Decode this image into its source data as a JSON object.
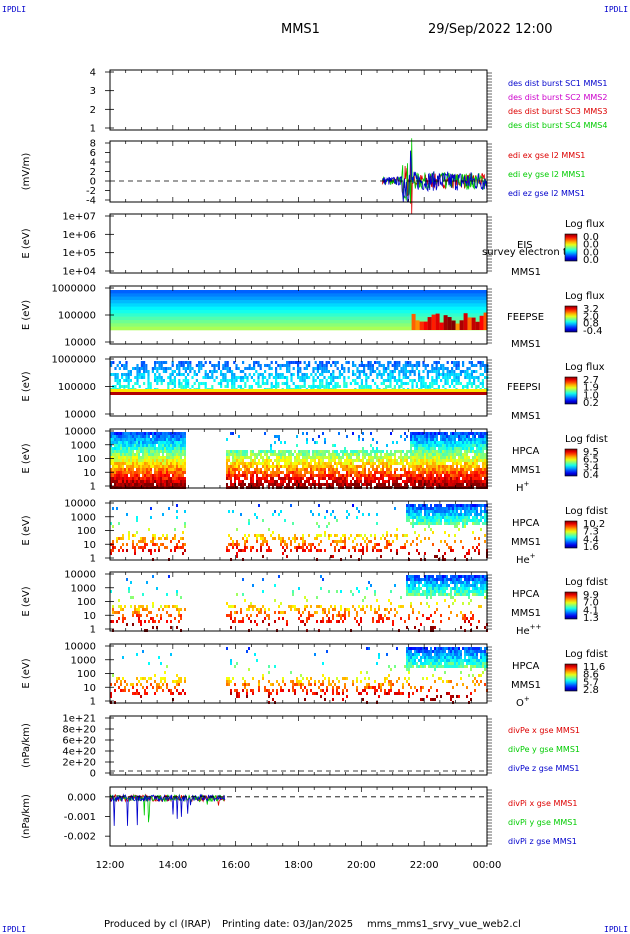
{
  "corner_label": "IPDLI",
  "header": {
    "mission": "MMS1",
    "datetime": "29/Sep/2022 12:00"
  },
  "footer": {
    "produced_by": "Produced by cl (IRAP)",
    "printing_date": "Printing date: 03/Jan/2025",
    "filename": "mms_mms1_srvy_vue_web2.cl"
  },
  "x_ticks": [
    "12:00",
    "14:00",
    "16:00",
    "18:00",
    "20:00",
    "22:00",
    "00:00"
  ],
  "colors": {
    "blue": "#0000cc",
    "magenta": "#cc00cc",
    "red": "#dd0000",
    "green": "#00cc00"
  },
  "chart_data": [
    {
      "id": "panel-dist",
      "type": "line",
      "y_ticks": [
        "1",
        "2",
        "3",
        "4"
      ],
      "ylim": [
        1,
        4
      ],
      "series": [
        {
          "name": "des dist burst SC1 MMS1",
          "color": "#0000cc",
          "values": []
        },
        {
          "name": "des dist burst SC2 MMS2",
          "color": "#cc00cc",
          "values": []
        },
        {
          "name": "des dist burst SC3 MMS3",
          "color": "#dd0000",
          "values": []
        },
        {
          "name": "des dist burst SC4 MMS4",
          "color": "#00cc00",
          "values": []
        }
      ]
    },
    {
      "id": "panel-efield",
      "type": "line",
      "ylabel": "(mV/m)",
      "y_ticks": [
        "-4",
        "-2",
        "0",
        "2",
        "4",
        "6",
        "8"
      ],
      "ylim": [
        -4,
        8
      ],
      "data_start_time": "20:40",
      "series": [
        {
          "name": "edi ex gse l2 MMS1",
          "color": "#dd0000"
        },
        {
          "name": "edi ey gse l2 MMS1",
          "color": "#00cc00"
        },
        {
          "name": "edi ez gse l2 MMS1",
          "color": "#0000cc"
        }
      ]
    },
    {
      "id": "panel-eis",
      "type": "heatmap",
      "ylabel": "E (eV)",
      "y_ticks": [
        "1e+04",
        "1e+05",
        "1e+06",
        "1e+07"
      ],
      "instrument": "EIS",
      "species": "survey electron to",
      "spacecraft": "MMS1",
      "colorbar_title": "Log flux",
      "colorbar_ticks": [
        "0.0",
        "0.0",
        "0.0",
        "0.0"
      ]
    },
    {
      "id": "panel-feepse",
      "type": "heatmap",
      "ylabel": "E (eV)",
      "y_ticks": [
        "10000",
        "100000",
        "1000000"
      ],
      "instrument": "FEEPSE",
      "spacecraft": "MMS1",
      "colorbar_title": "Log flux",
      "colorbar_ticks": [
        "3.2",
        "2.0",
        "0.8",
        "-0.4"
      ]
    },
    {
      "id": "panel-feepsi",
      "type": "heatmap",
      "ylabel": "E (eV)",
      "y_ticks": [
        "10000",
        "100000",
        "1000000"
      ],
      "instrument": "FEEPSI",
      "spacecraft": "MMS1",
      "colorbar_title": "Log flux",
      "colorbar_ticks": [
        "2.7",
        "1.9",
        "1.0",
        "0.2"
      ]
    },
    {
      "id": "panel-hpca-h",
      "type": "heatmap",
      "ylabel": "E (eV)",
      "y_ticks": [
        "1",
        "10",
        "100",
        "1000",
        "10000"
      ],
      "instrument": "HPCA",
      "spacecraft": "MMS1",
      "species_base": "H",
      "species_sup": "+",
      "colorbar_title": "Log fdist",
      "colorbar_ticks": [
        "9.5",
        "6.5",
        "3.4",
        "0.4"
      ],
      "data_gap": [
        "14:25",
        "15:40"
      ]
    },
    {
      "id": "panel-hpca-he",
      "type": "heatmap",
      "ylabel": "E (eV)",
      "y_ticks": [
        "1",
        "10",
        "100",
        "1000",
        "10000"
      ],
      "instrument": "HPCA",
      "spacecraft": "MMS1",
      "species_base": "He",
      "species_sup": "+",
      "colorbar_title": "Log fdist",
      "colorbar_ticks": [
        "10.2",
        "7.3",
        "4.4",
        "1.6"
      ],
      "data_gap": [
        "14:25",
        "15:40"
      ]
    },
    {
      "id": "panel-hpca-he2",
      "type": "heatmap",
      "ylabel": "E (eV)",
      "y_ticks": [
        "1",
        "10",
        "100",
        "1000",
        "10000"
      ],
      "instrument": "HPCA",
      "spacecraft": "MMS1",
      "species_base": "He",
      "species_sup": "++",
      "colorbar_title": "Log fdist",
      "colorbar_ticks": [
        "9.9",
        "7.0",
        "4.1",
        "1.3"
      ],
      "data_gap": [
        "14:25",
        "15:40"
      ]
    },
    {
      "id": "panel-hpca-o",
      "type": "heatmap",
      "ylabel": "E (eV)",
      "y_ticks": [
        "1",
        "10",
        "100",
        "1000",
        "10000"
      ],
      "instrument": "HPCA",
      "spacecraft": "MMS1",
      "species_base": "O",
      "species_sup": "+",
      "colorbar_title": "Log fdist",
      "colorbar_ticks": [
        "11.6",
        "8.6",
        "5.7",
        "2.8"
      ],
      "data_gap": [
        "14:25",
        "15:40"
      ]
    },
    {
      "id": "panel-divpe",
      "type": "line",
      "ylabel": "(nPa/km)",
      "y_ticks": [
        "0",
        "2e+20",
        "4e+20",
        "6e+20",
        "8e+20",
        "1e+21"
      ],
      "ylim": [
        0,
        1e+21
      ],
      "series": [
        {
          "name": "divPe x gse MMS1",
          "color": "#dd0000"
        },
        {
          "name": "divPe y gse MMS1",
          "color": "#00cc00"
        },
        {
          "name": "divPe z gse MMS1",
          "color": "#0000cc"
        }
      ]
    },
    {
      "id": "panel-divpi",
      "type": "line",
      "ylabel": "(nPa/km)",
      "y_ticks": [
        "-0.002",
        "-0.001",
        "0.000"
      ],
      "ylim": [
        -0.0025,
        0.0005
      ],
      "data_end_time": "15:40",
      "series": [
        {
          "name": "divPi x gse MMS1",
          "color": "#dd0000"
        },
        {
          "name": "divPi y gse MMS1",
          "color": "#00cc00"
        },
        {
          "name": "divPi z gse MMS1",
          "color": "#0000cc"
        }
      ]
    }
  ]
}
